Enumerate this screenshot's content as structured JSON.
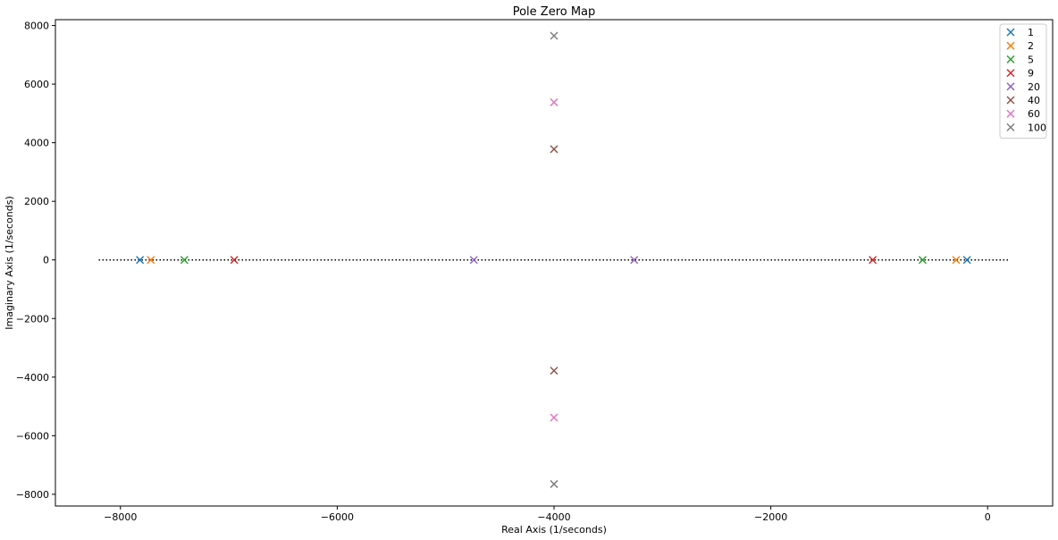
{
  "chart_data": {
    "type": "scatter",
    "title": "Pole Zero Map",
    "xlabel": "Real Axis (1/seconds)",
    "ylabel": "Imaginary Axis (1/seconds)",
    "xlim": [
      -8600,
      600
    ],
    "ylim": [
      -8400,
      8200
    ],
    "xticks": [
      -8000,
      -6000,
      -4000,
      -2000,
      0
    ],
    "xtick_labels": [
      "−8000",
      "−6000",
      "−4000",
      "−2000",
      "0"
    ],
    "yticks": [
      -8000,
      -6000,
      -4000,
      -2000,
      0,
      2000,
      4000,
      6000,
      8000
    ],
    "ytick_labels": [
      "−8000",
      "−6000",
      "−4000",
      "−2000",
      "0",
      "2000",
      "4000",
      "6000",
      "8000"
    ],
    "grid": false,
    "marker": "x",
    "legend_position": "top-right",
    "reference_line": {
      "style": "dotted",
      "color": "#000000",
      "x": [
        -8200,
        200
      ],
      "y": [
        0,
        0
      ]
    },
    "series": [
      {
        "name": "1",
        "color": "#1f77b4",
        "points": [
          [
            -7820,
            0
          ],
          [
            -190,
            0
          ]
        ]
      },
      {
        "name": "2",
        "color": "#ff7f0e",
        "points": [
          [
            -7720,
            0
          ],
          [
            -290,
            0
          ]
        ]
      },
      {
        "name": "5",
        "color": "#2ca02c",
        "points": [
          [
            -7410,
            0
          ],
          [
            -600,
            0
          ]
        ]
      },
      {
        "name": "9",
        "color": "#d62728",
        "points": [
          [
            -6950,
            0
          ],
          [
            -1060,
            0
          ]
        ]
      },
      {
        "name": "20",
        "color": "#9467bd",
        "points": [
          [
            -4740,
            0
          ],
          [
            -3260,
            0
          ]
        ]
      },
      {
        "name": "40",
        "color": "#8c564b",
        "points": [
          [
            -4000,
            3780
          ],
          [
            -4000,
            -3780
          ]
        ]
      },
      {
        "name": "60",
        "color": "#e377c2",
        "points": [
          [
            -4000,
            5380
          ],
          [
            -4000,
            -5380
          ]
        ]
      },
      {
        "name": "100",
        "color": "#7f7f7f",
        "points": [
          [
            -4000,
            7650
          ],
          [
            -4000,
            -7650
          ]
        ]
      }
    ]
  }
}
